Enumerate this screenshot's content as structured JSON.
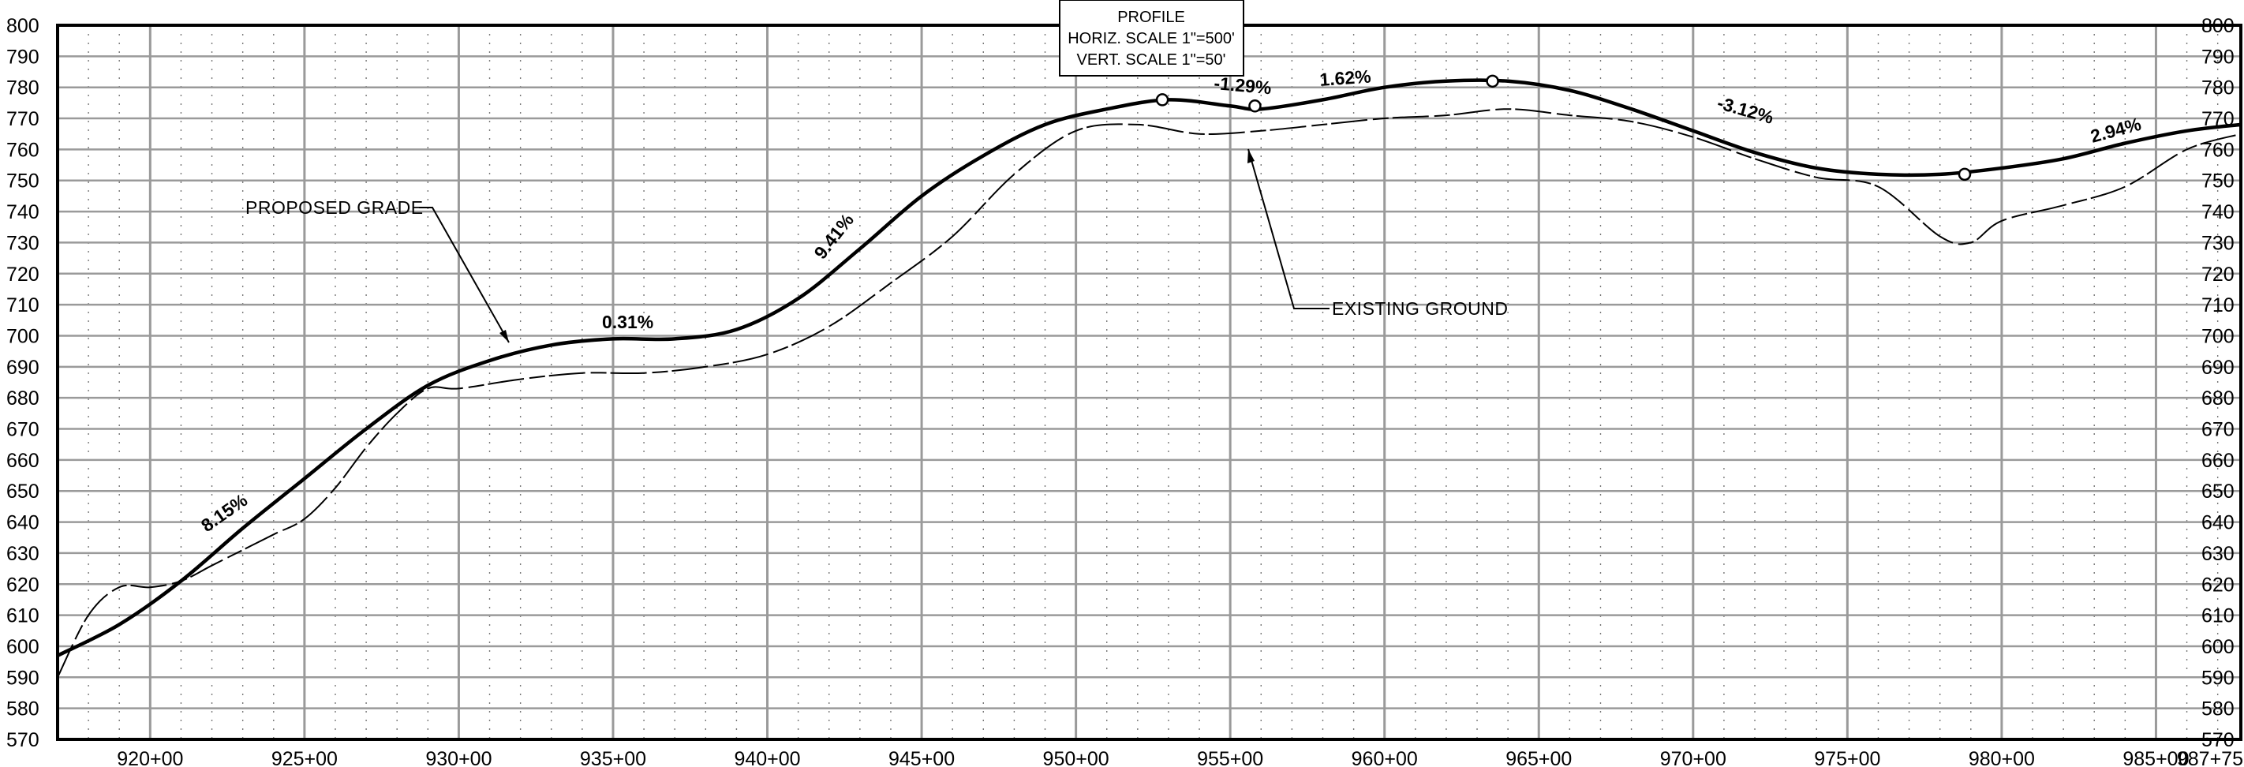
{
  "chart_data": {
    "type": "line",
    "title": "PROFILE",
    "scale_notes": [
      "HORIZ. SCALE 1\"=500'",
      "VERT. SCALE 1\"=50'"
    ],
    "xlim": [
      91700,
      98775
    ],
    "ylim": [
      570,
      800
    ],
    "x_ticks": [
      {
        "value": 92000,
        "label": "920+00"
      },
      {
        "value": 92500,
        "label": "925+00"
      },
      {
        "value": 93000,
        "label": "930+00"
      },
      {
        "value": 93500,
        "label": "935+00"
      },
      {
        "value": 94000,
        "label": "940+00"
      },
      {
        "value": 94500,
        "label": "945+00"
      },
      {
        "value": 95000,
        "label": "950+00"
      },
      {
        "value": 95500,
        "label": "955+00"
      },
      {
        "value": 96000,
        "label": "960+00"
      },
      {
        "value": 96500,
        "label": "965+00"
      },
      {
        "value": 97000,
        "label": "970+00"
      },
      {
        "value": 97500,
        "label": "975+00"
      },
      {
        "value": 98000,
        "label": "980+00"
      },
      {
        "value": 98500,
        "label": "985+00"
      },
      {
        "value": 98775,
        "label": "987+75"
      }
    ],
    "y_ticks": [
      570,
      580,
      590,
      600,
      610,
      620,
      630,
      640,
      650,
      660,
      670,
      680,
      690,
      700,
      710,
      720,
      730,
      740,
      750,
      760,
      770,
      780,
      790,
      800
    ],
    "grid": true,
    "series": [
      {
        "name": "PROPOSED GRADE",
        "style": "solid-bold",
        "x": [
          91700,
          91900,
          92100,
          92300,
          92500,
          92700,
          92900,
          93100,
          93300,
          93500,
          93700,
          93900,
          94100,
          94300,
          94500,
          94700,
          94900,
          95100,
          95300,
          95500,
          95600,
          95800,
          96000,
          96200,
          96400,
          96600,
          96800,
          97000,
          97200,
          97400,
          97600,
          97800,
          98000,
          98200,
          98400,
          98600,
          98775
        ],
        "y": [
          597,
          607,
          621,
          638,
          654,
          670,
          684,
          692,
          697,
          699,
          699,
          702,
          712,
          728,
          745,
          758,
          768,
          773,
          776,
          774,
          773,
          776,
          780,
          782,
          782,
          779,
          773,
          766,
          759,
          754,
          752,
          752,
          754,
          757,
          762,
          766,
          768
        ]
      },
      {
        "name": "EXISTING GROUND",
        "style": "thin-dashed",
        "x": [
          91700,
          91800,
          91900,
          92000,
          92100,
          92200,
          92300,
          92400,
          92500,
          92600,
          92700,
          92800,
          92900,
          93000,
          93200,
          93400,
          93600,
          93800,
          94000,
          94200,
          94400,
          94600,
          94800,
          95000,
          95200,
          95400,
          95600,
          95800,
          96000,
          96200,
          96400,
          96600,
          96800,
          97000,
          97200,
          97400,
          97600,
          97800,
          97900,
          98000,
          98200,
          98400,
          98600,
          98775
        ],
        "y": [
          590,
          610,
          619,
          619,
          621,
          626,
          631,
          636,
          641,
          651,
          664,
          675,
          683,
          683,
          686,
          688,
          688,
          690,
          694,
          703,
          717,
          732,
          752,
          766,
          768,
          765,
          766,
          768,
          770,
          771,
          773,
          771,
          769,
          764,
          757,
          751,
          748,
          732,
          730,
          737,
          742,
          748,
          760,
          765
        ]
      }
    ],
    "annotations": {
      "slopes": [
        "8.15%",
        "0.31%",
        "9.41%",
        "-1.29%",
        "1.62%",
        "-3.12%",
        "2.94%"
      ],
      "pvi_markers": [
        {
          "x": 95280,
          "y": 776
        },
        {
          "x": 95580,
          "y": 774
        },
        {
          "x": 96350,
          "y": 782
        },
        {
          "x": 97880,
          "y": 752
        }
      ],
      "callouts": [
        "PROPOSED GRADE",
        "EXISTING GROUND"
      ]
    }
  }
}
